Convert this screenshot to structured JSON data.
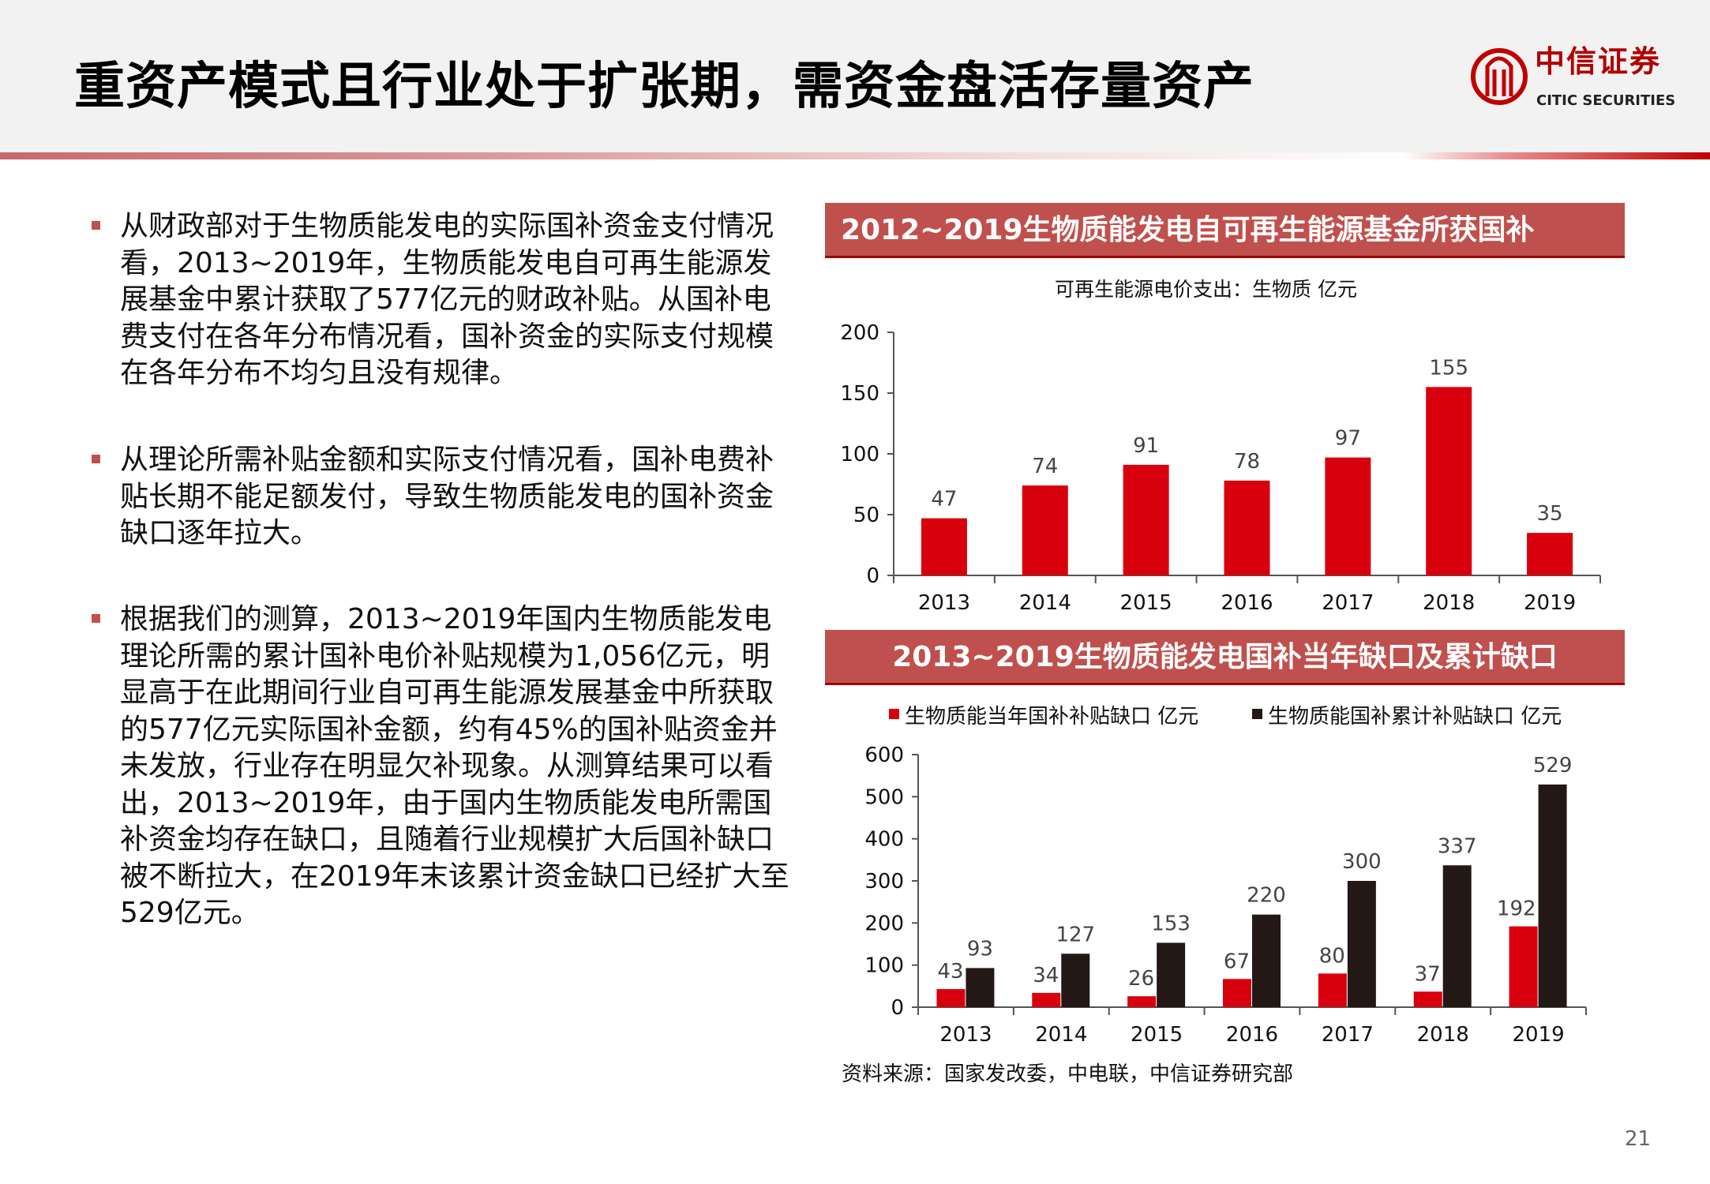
{
  "header": {
    "title": "重资产模式且行业处于扩张期，需资金盘活存量资产",
    "logo_cn": "中信证券",
    "logo_en": "CITIC SECURITIES"
  },
  "bullets": [
    "从财政部对于生物质能发电的实际国补资金支付情况看，2013~2019年，生物质能发电自可再生能源发展基金中累计获取了577亿元的财政补贴。从国补电费支付在各年分布情况看，国补资金的实际支付规模在各年分布不均匀且没有规律。",
    "从理论所需补贴金额和实际支付情况看，国补电费补贴长期不能足额发付，导致生物质能发电的国补资金缺口逐年拉大。",
    "根据我们的测算，2013~2019年国内生物质能发电理论所需的累计国补电价补贴规模为1,056亿元，明显高于在此期间行业自可再生能源发展基金中所获取的577亿元实际国补金额，约有45%的国补贴资金并未发放，行业存在明显欠补现象。从测算结果可以看出，2013~2019年，由于国内生物质能发电所需国补资金均存在缺口，且随着行业规模扩大后国补缺口被不断拉大，在2019年末该累计资金缺口已经扩大至529亿元。"
  ],
  "chart_data": [
    {
      "type": "bar",
      "title": "2012~2019生物质能发电自可再生能源基金所获国补",
      "subtitle": "可再生能源电价支出：生物质  亿元",
      "categories": [
        "2013",
        "2014",
        "2015",
        "2016",
        "2017",
        "2018",
        "2019"
      ],
      "values": [
        47,
        74,
        91,
        78,
        97,
        155,
        35
      ],
      "ylim": [
        0,
        200
      ],
      "yticks": [
        0,
        50,
        100,
        150,
        200
      ],
      "color": "#d9000d"
    },
    {
      "type": "bar",
      "title": "2013~2019生物质能发电国补当年缺口及累计缺口",
      "categories": [
        "2013",
        "2014",
        "2015",
        "2016",
        "2017",
        "2018",
        "2019"
      ],
      "series": [
        {
          "name": "生物质能当年国补补贴缺口 亿元",
          "values": [
            43,
            34,
            26,
            67,
            80,
            37,
            192
          ],
          "color": "#d9000d"
        },
        {
          "name": "生物质能国补累计补贴缺口 亿元",
          "values": [
            93,
            127,
            153,
            220,
            300,
            337,
            529
          ],
          "color": "#231815"
        }
      ],
      "ylim": [
        0,
        600
      ],
      "yticks": [
        0,
        100,
        200,
        300,
        400,
        500,
        600
      ],
      "legend": "top"
    }
  ],
  "source": "资料来源：国家发改委，中电联，中信证券研究部",
  "page_number": "21"
}
